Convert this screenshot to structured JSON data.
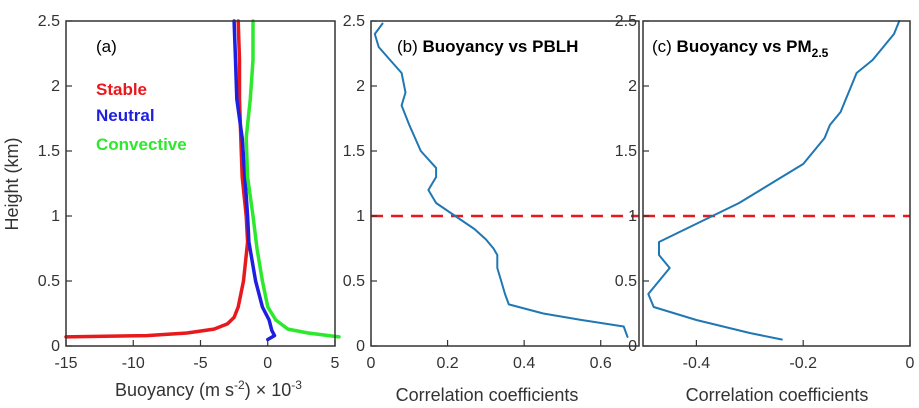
{
  "chart_data": [
    {
      "type": "line",
      "panel_label": "(a)",
      "xlabel": "Buoyancy (m s",
      "xlabel_sup": "-2",
      "xlabel_suffix": ") × 10",
      "xlabel_exp": "-3",
      "ylabel": "Height (km)",
      "xlim": [
        -15,
        5
      ],
      "ylim": [
        0,
        2.5
      ],
      "xticks": [
        -15,
        -10,
        -5,
        0,
        5
      ],
      "yticks": [
        0,
        0.5,
        1,
        1.5,
        2,
        2.5
      ],
      "legend_position": "upper-left",
      "series": [
        {
          "name": "Stable",
          "color": "#e8191c",
          "y": [
            0.07,
            0.08,
            0.1,
            0.13,
            0.17,
            0.22,
            0.3,
            0.5,
            0.8,
            1.0,
            1.3,
            1.6,
            1.9,
            2.2,
            2.5
          ],
          "x": [
            -15,
            -9,
            -6,
            -4,
            -3,
            -2.5,
            -2.2,
            -1.8,
            -1.5,
            -1.6,
            -1.9,
            -2.0,
            -2.1,
            -2.1,
            -2.2
          ]
        },
        {
          "name": "Neutral",
          "color": "#1f1fe0",
          "y": [
            0.05,
            0.08,
            0.12,
            0.2,
            0.3,
            0.5,
            0.8,
            1.0,
            1.3,
            1.6,
            1.9,
            2.2,
            2.5
          ],
          "x": [
            0.0,
            0.5,
            0.3,
            0.1,
            -0.4,
            -0.9,
            -1.4,
            -1.5,
            -1.7,
            -1.9,
            -2.3,
            -2.4,
            -2.5
          ]
        },
        {
          "name": "Convective",
          "color": "#2ee82e",
          "y": [
            0.07,
            0.1,
            0.13,
            0.2,
            0.3,
            0.5,
            0.75,
            1.0,
            1.3,
            1.6,
            1.9,
            2.2,
            2.5
          ],
          "x": [
            5.3,
            3.0,
            1.5,
            0.6,
            0.0,
            -0.4,
            -0.8,
            -1.1,
            -1.5,
            -1.6,
            -1.3,
            -1.1,
            -1.1
          ]
        }
      ]
    },
    {
      "type": "line",
      "title": "(b) Buoyancy vs PBLH",
      "xlabel": "Correlation coefficients",
      "xlim": [
        0,
        0.7
      ],
      "ylim": [
        0,
        2.5
      ],
      "xticks": [
        0,
        0.2,
        0.4,
        0.6
      ],
      "yticks": [
        0,
        0.5,
        1,
        1.5,
        2,
        2.5
      ],
      "reference_line_y": 1.0,
      "series": [
        {
          "color": "#1f77b4",
          "y": [
            0.07,
            0.15,
            0.2,
            0.25,
            0.32,
            0.4,
            0.5,
            0.6,
            0.7,
            0.75,
            0.82,
            0.9,
            1.0,
            1.1,
            1.2,
            1.3,
            1.37,
            1.5,
            1.7,
            1.85,
            1.95,
            2.1,
            2.2,
            2.3,
            2.4,
            2.48
          ],
          "x": [
            0.67,
            0.66,
            0.55,
            0.45,
            0.36,
            0.35,
            0.34,
            0.33,
            0.33,
            0.32,
            0.3,
            0.27,
            0.22,
            0.17,
            0.15,
            0.17,
            0.17,
            0.13,
            0.1,
            0.08,
            0.09,
            0.08,
            0.05,
            0.02,
            0.01,
            0.03
          ]
        }
      ]
    },
    {
      "type": "line",
      "title": "(c) Buoyancy vs PM",
      "title_sub": "2.5",
      "xlabel": "Correlation coefficients",
      "xlim": [
        -0.5,
        0
      ],
      "ylim": [
        0,
        2.5
      ],
      "xticks": [
        -0.4,
        -0.2,
        0
      ],
      "yticks": [
        0,
        0.5,
        1,
        1.5,
        2,
        2.5
      ],
      "reference_line_y": 1.0,
      "series": [
        {
          "color": "#1f77b4",
          "y": [
            0.05,
            0.1,
            0.2,
            0.3,
            0.4,
            0.5,
            0.6,
            0.7,
            0.8,
            0.9,
            1.0,
            1.1,
            1.2,
            1.3,
            1.4,
            1.5,
            1.6,
            1.7,
            1.8,
            1.9,
            2.0,
            2.1,
            2.2,
            2.3,
            2.4,
            2.5
          ],
          "x": [
            -0.24,
            -0.3,
            -0.4,
            -0.48,
            -0.49,
            -0.47,
            -0.45,
            -0.47,
            -0.47,
            -0.42,
            -0.37,
            -0.32,
            -0.28,
            -0.24,
            -0.2,
            -0.18,
            -0.16,
            -0.15,
            -0.13,
            -0.12,
            -0.11,
            -0.1,
            -0.07,
            -0.05,
            -0.03,
            -0.02
          ]
        }
      ]
    }
  ]
}
